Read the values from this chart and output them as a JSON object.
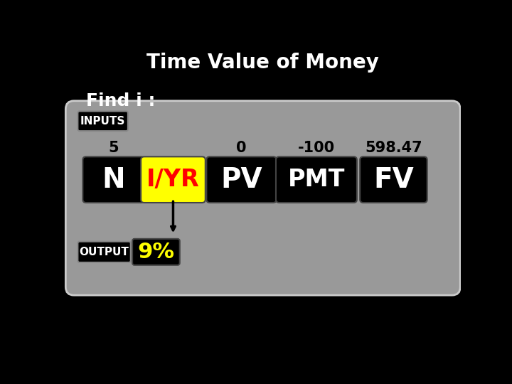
{
  "title": "Time Value of Money",
  "subtitle": "Find i :",
  "background_color": "#000000",
  "panel_color": "#999999",
  "panel_edge_color": "#cccccc",
  "title_color": "#ffffff",
  "subtitle_color": "#ffffff",
  "inputs_label": "INPUTS",
  "output_label": "OUTPUT",
  "input_values": [
    "5",
    "",
    "0",
    "-100",
    "598.47"
  ],
  "button_labels": [
    "N",
    "I/YR",
    "PV",
    "PMT",
    "FV"
  ],
  "button_colors": [
    "#000000",
    "#ffff00",
    "#000000",
    "#000000",
    "#000000"
  ],
  "button_text_colors": [
    "#ffffff",
    "#ff0000",
    "#ffffff",
    "#ffffff",
    "#ffffff"
  ],
  "output_value": "9%",
  "output_value_color": "#ffff00",
  "output_box_color": "#000000",
  "value_text_color": "#000000",
  "label_box_color": "#000000",
  "label_text_color": "#ffffff"
}
